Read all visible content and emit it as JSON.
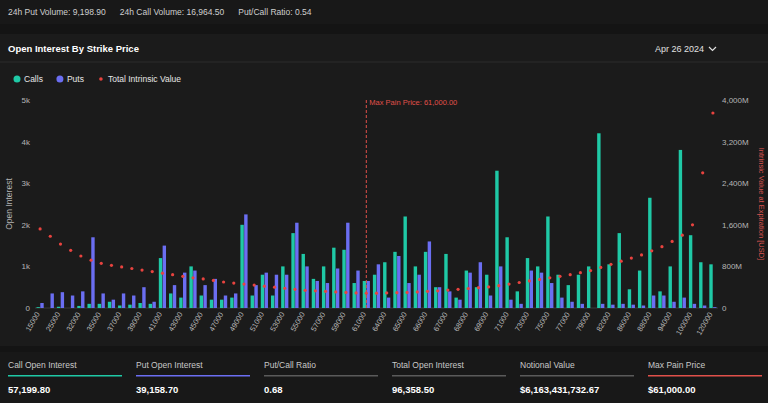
{
  "header": {
    "items": [
      "24h Put Volume: 9,198.90",
      "24h Call Volume: 16,964.50",
      "Put/Call Ratio: 0.54"
    ]
  },
  "panel": {
    "title": "Open Interest By Strike Price",
    "date": "Apr 26 2024"
  },
  "chart_data": {
    "type": "bar",
    "y_label": "Open Interest",
    "y2_label": "Intrinsic Value at Expiration [USD]",
    "categories": [
      "15000",
      null,
      "25000",
      null,
      "32000",
      null,
      "35000",
      null,
      "37000",
      null,
      "39000",
      null,
      "41000",
      null,
      "43000",
      null,
      "45000",
      null,
      "47000",
      null,
      "49000",
      null,
      "51000",
      null,
      "53000",
      null,
      "55000",
      null,
      "57000",
      null,
      "59000",
      null,
      "61000",
      null,
      "64000",
      null,
      "65000",
      null,
      "66000",
      null,
      "67000",
      null,
      "68000",
      null,
      "69000",
      null,
      "71000",
      null,
      "73000",
      null,
      "75000",
      null,
      "77000",
      null,
      "79000",
      null,
      "82000",
      null,
      "86000",
      null,
      "88000",
      null,
      "94000",
      null,
      "100000",
      null,
      "120000"
    ],
    "series": [
      {
        "name": "Calls",
        "color": "#1fc9a6",
        "values": [
          20,
          0,
          30,
          0,
          50,
          100,
          100,
          150,
          60,
          80,
          120,
          100,
          1200,
          350,
          250,
          1000,
          300,
          200,
          200,
          250,
          2000,
          300,
          800,
          300,
          1000,
          1800,
          1300,
          700,
          1000,
          1450,
          1400,
          600,
          650,
          800,
          1100,
          1350,
          2200,
          1000,
          1350,
          500,
          1300,
          250,
          900,
          500,
          800,
          3300,
          1700,
          400,
          1200,
          1000,
          2200,
          800,
          550,
          800,
          1000,
          4200,
          1050,
          1800,
          450,
          900,
          2650,
          400,
          1000,
          3800,
          1750,
          1100,
          1050
        ]
      },
      {
        "name": "Puts",
        "color": "#6b6ef2",
        "values": [
          120,
          350,
          380,
          300,
          400,
          1700,
          350,
          200,
          350,
          300,
          500,
          150,
          1500,
          550,
          850,
          900,
          550,
          700,
          300,
          350,
          2250,
          550,
          850,
          800,
          800,
          2050,
          1000,
          650,
          600,
          950,
          2050,
          900,
          650,
          1050,
          250,
          1250,
          600,
          800,
          1600,
          500,
          400,
          200,
          850,
          1100,
          300,
          1000,
          200,
          100,
          900,
          850,
          600,
          250,
          150,
          100,
          0,
          100,
          80,
          100,
          80,
          60,
          300,
          300,
          150,
          250,
          100,
          60,
          20
        ]
      },
      {
        "name": "Total Intrinsic Value",
        "color": "#e8433f",
        "type": "scatter",
        "marker": "dot",
        "axis": "y2",
        "values": [
          1520,
          1380,
          1230,
          1110,
          1000,
          920,
          860,
          820,
          790,
          760,
          730,
          700,
          670,
          640,
          610,
          580,
          560,
          530,
          500,
          480,
          460,
          440,
          420,
          400,
          380,
          360,
          340,
          330,
          320,
          310,
          300,
          290,
          285,
          285,
          290,
          295,
          300,
          310,
          320,
          330,
          345,
          360,
          375,
          390,
          405,
          430,
          460,
          490,
          520,
          550,
          580,
          610,
          640,
          680,
          720,
          780,
          840,
          900,
          960,
          1020,
          1100,
          1180,
          1280,
          1400,
          1600,
          2600,
          3750
        ]
      }
    ],
    "ylim": [
      0,
      5000
    ],
    "yticks": [
      0,
      {
        "value": 1000,
        "label": "1k"
      },
      {
        "value": 2000,
        "label": "2k"
      },
      {
        "value": 3000,
        "label": "3k"
      },
      {
        "value": 4000,
        "label": "4k"
      },
      {
        "value": 5000,
        "label": "5k"
      }
    ],
    "y2lim": [
      0,
      4000
    ],
    "y2ticks": [
      0,
      {
        "value": 800,
        "label": "800M"
      },
      {
        "value": 1600,
        "label": "1,600M"
      },
      {
        "value": 2400,
        "label": "2,400M"
      },
      {
        "value": 3200,
        "label": "3,200M"
      },
      {
        "value": 4000,
        "label": "4,000M"
      }
    ],
    "grid": false,
    "legend": "top-left",
    "annotations": [
      {
        "text": "Max Pain Price: 61,000.00",
        "value": 61000,
        "color": "#e0504a"
      }
    ]
  },
  "stats": [
    {
      "label": "Call Open Interest",
      "value": "57,199.80",
      "color": "#1fc9a6"
    },
    {
      "label": "Put Open Interest",
      "value": "39,158.70",
      "color": "#6b6ef2"
    },
    {
      "label": "Put/Call Ratio",
      "value": "0.68",
      "color": "#5a5a5a"
    },
    {
      "label": "Total Open Interest",
      "value": "96,358.50",
      "color": "#5a5a5a"
    },
    {
      "label": "Notional Value",
      "value": "$6,163,431,732.67",
      "color": "#5a5a5a"
    },
    {
      "label": "Max Pain Price",
      "value": "$61,000.00",
      "color": "#e0504a"
    }
  ]
}
